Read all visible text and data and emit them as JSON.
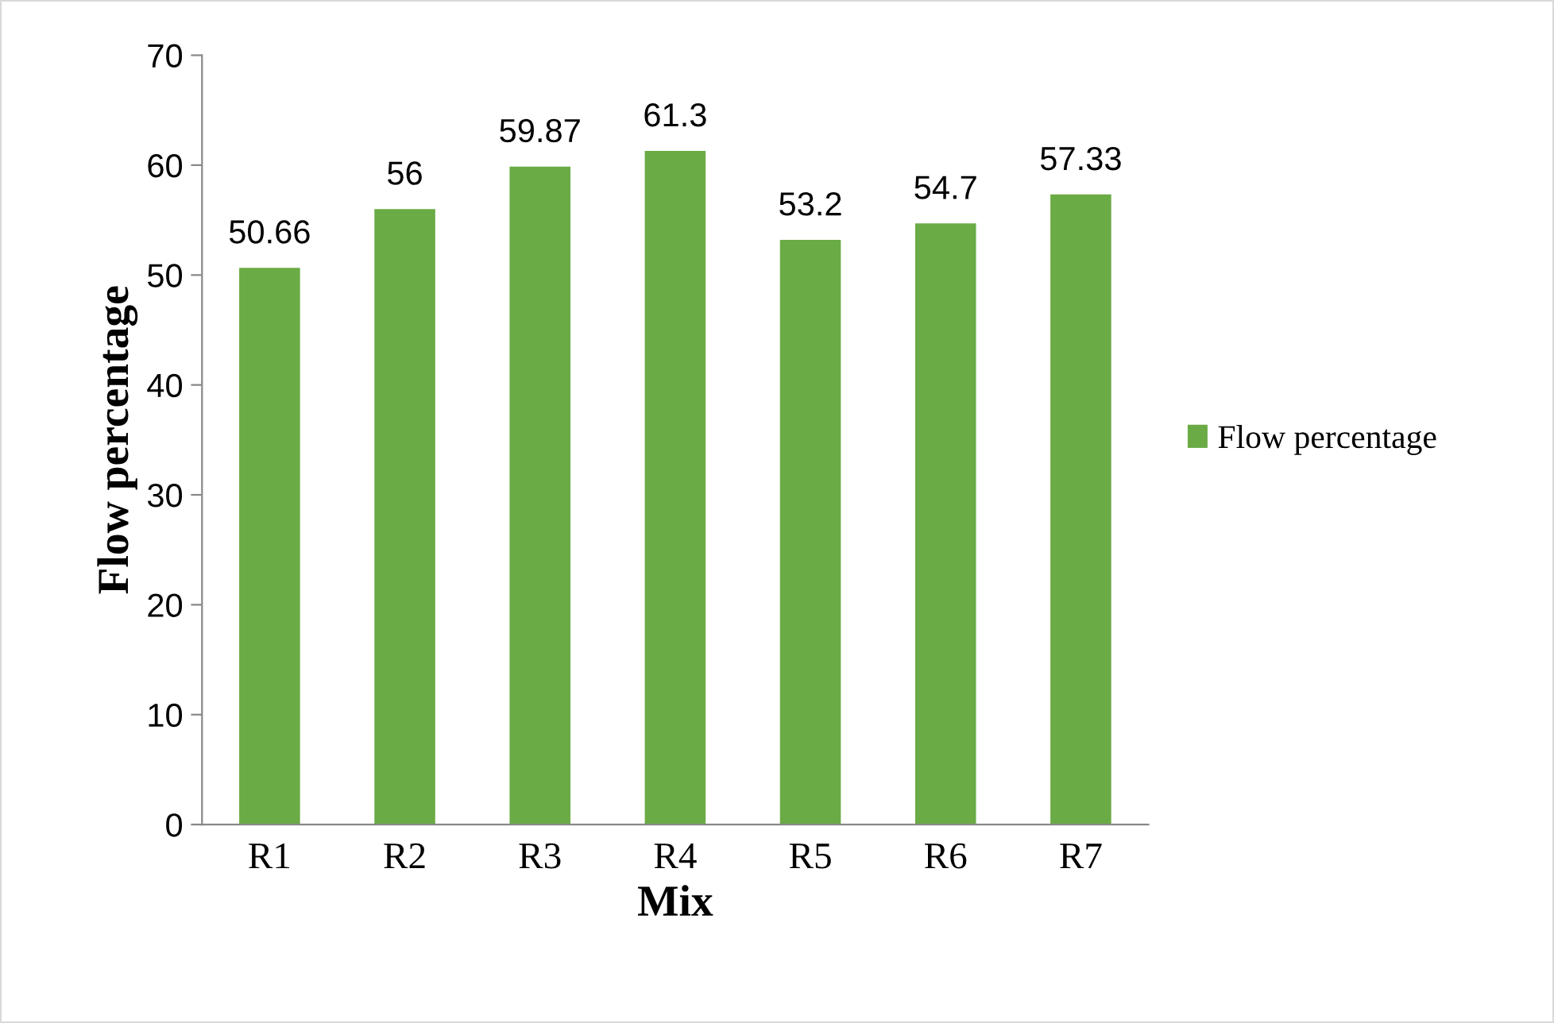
{
  "chart_data": {
    "type": "bar",
    "xlabel": "Mix",
    "ylabel": "Flow percentage",
    "categories": [
      "R1",
      "R2",
      "R3",
      "R4",
      "R5",
      "R6",
      "R7"
    ],
    "series": [
      {
        "name": "Flow percentage",
        "color": "#6aab45",
        "values": [
          50.66,
          56,
          59.87,
          61.3,
          53.2,
          54.7,
          57.33
        ]
      }
    ],
    "ylim": [
      0,
      70
    ],
    "yticks": [
      0,
      10,
      20,
      30,
      40,
      50,
      60,
      70
    ],
    "data_labels": true,
    "grid": false,
    "legend": "right"
  }
}
